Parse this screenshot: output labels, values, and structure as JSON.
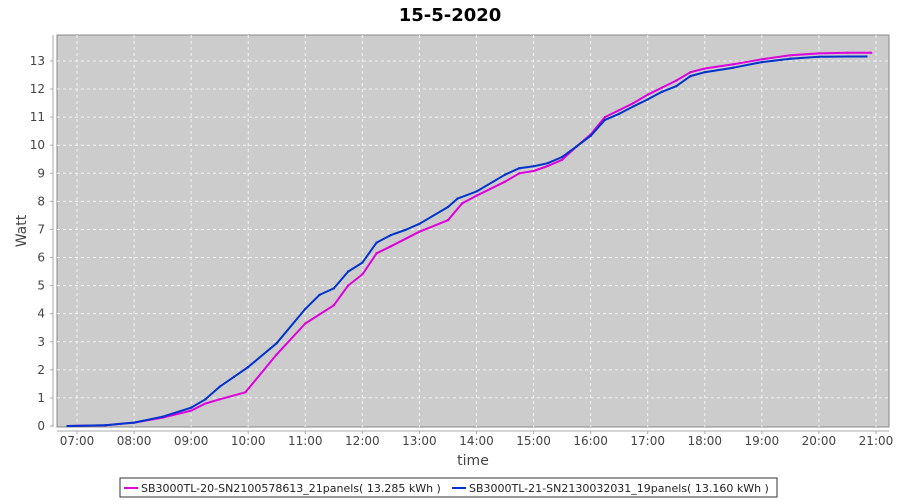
{
  "chart_data": {
    "type": "line",
    "title": "15-5-2020",
    "xlabel": "time",
    "ylabel": "Watt",
    "xlim": [
      "06:40",
      "21:15"
    ],
    "ylim": [
      0,
      13.9
    ],
    "grid": true,
    "legend_position": "bottom",
    "plot_background": "#cccccc",
    "x_ticks": [
      "07:00",
      "08:00",
      "09:00",
      "10:00",
      "11:00",
      "12:00",
      "13:00",
      "14:00",
      "15:00",
      "16:00",
      "17:00",
      "18:00",
      "19:00",
      "20:00",
      "21:00"
    ],
    "y_ticks": [
      "0",
      "1",
      "2",
      "3",
      "4",
      "5",
      "6",
      "7",
      "8",
      "9",
      "10",
      "11",
      "12",
      "13"
    ],
    "series": [
      {
        "name": "SB3000TL-20-SN2100578613_21panels( 13.285 kWh )",
        "color": "#dd00dd",
        "x": [
          "06:50",
          "07:30",
          "08:00",
          "08:30",
          "09:00",
          "09:15",
          "09:30",
          "09:57",
          "10:30",
          "11:00",
          "11:30",
          "11:45",
          "12:00",
          "12:15",
          "12:30",
          "13:00",
          "13:30",
          "13:45",
          "14:00",
          "14:30",
          "14:45",
          "15:00",
          "15:15",
          "15:30",
          "15:45",
          "16:00",
          "16:15",
          "16:30",
          "16:45",
          "17:00",
          "17:15",
          "17:30",
          "17:45",
          "18:00",
          "18:30",
          "19:00",
          "19:30",
          "20:00",
          "20:30",
          "20:55"
        ],
        "y": [
          0,
          0.03,
          0.12,
          0.3,
          0.55,
          0.8,
          0.95,
          1.2,
          2.55,
          3.65,
          4.3,
          5.0,
          5.4,
          6.15,
          6.4,
          6.92,
          7.33,
          7.93,
          8.2,
          8.7,
          9.0,
          9.08,
          9.26,
          9.48,
          9.95,
          10.38,
          11.0,
          11.25,
          11.5,
          11.8,
          12.05,
          12.3,
          12.6,
          12.73,
          12.88,
          13.06,
          13.2,
          13.27,
          13.29,
          13.29
        ]
      },
      {
        "name": "SB3000TL-21-SN2130032031_19panels( 13.160 kWh )",
        "color": "#0033cc",
        "x": [
          "06:50",
          "07:30",
          "08:00",
          "08:30",
          "09:00",
          "09:15",
          "09:30",
          "09:45",
          "10:00",
          "10:30",
          "11:00",
          "11:15",
          "11:30",
          "11:45",
          "12:00",
          "12:15",
          "12:30",
          "12:45",
          "13:00",
          "13:30",
          "13:40",
          "14:00",
          "14:30",
          "14:45",
          "15:00",
          "15:15",
          "15:30",
          "15:45",
          "16:00",
          "16:15",
          "16:30",
          "16:45",
          "17:00",
          "17:15",
          "17:30",
          "17:45",
          "18:00",
          "18:30",
          "19:00",
          "19:30",
          "20:00",
          "20:30",
          "20:50"
        ],
        "y": [
          0,
          0.03,
          0.12,
          0.33,
          0.65,
          0.95,
          1.4,
          1.75,
          2.1,
          2.95,
          4.17,
          4.67,
          4.9,
          5.5,
          5.82,
          6.53,
          6.8,
          6.98,
          7.2,
          7.8,
          8.1,
          8.35,
          8.95,
          9.18,
          9.25,
          9.36,
          9.58,
          9.95,
          10.33,
          10.9,
          11.12,
          11.38,
          11.63,
          11.9,
          12.1,
          12.46,
          12.6,
          12.76,
          12.96,
          13.08,
          13.15,
          13.16,
          13.16
        ]
      }
    ]
  }
}
